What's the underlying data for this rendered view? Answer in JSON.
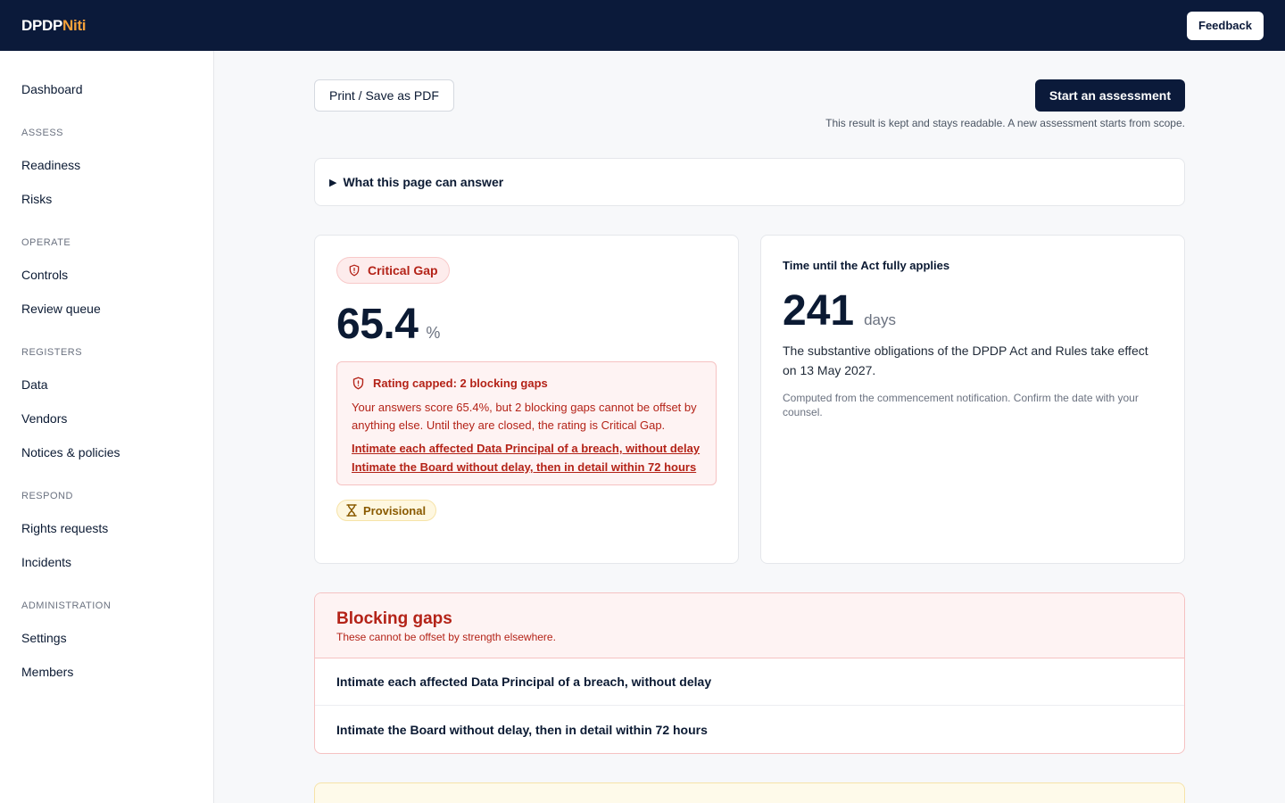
{
  "app": {
    "logo_primary": "DPDP",
    "logo_accent": "Niti",
    "feedback_label": "Feedback",
    "accent_color": "#f5a13a",
    "brand_color": "#0b1a3a"
  },
  "sidebar": {
    "top_item": "Dashboard",
    "groups": [
      {
        "label": "ASSESS",
        "items": [
          "Readiness",
          "Risks"
        ]
      },
      {
        "label": "OPERATE",
        "items": [
          "Controls",
          "Review queue"
        ]
      },
      {
        "label": "REGISTERS",
        "items": [
          "Data",
          "Vendors",
          "Notices & policies"
        ]
      },
      {
        "label": "RESPOND",
        "items": [
          "Rights requests",
          "Incidents"
        ]
      },
      {
        "label": "ADMINISTRATION",
        "items": [
          "Settings",
          "Members"
        ]
      }
    ]
  },
  "actions": {
    "print_label": "Print / Save as PDF",
    "start_label": "Start an assessment",
    "start_note": "This result is kept and stays readable. A new assessment starts from scope."
  },
  "faq": {
    "label": "What this page can answer",
    "icon": "triangle-right-icon"
  },
  "score_card": {
    "badge_label": "Critical Gap",
    "badge_icon": "shield-alert-icon",
    "score": "65.4",
    "unit": "%",
    "alert": {
      "title": "Rating capped: 2 blocking gaps",
      "body": "Your answers score 65.4%, but 2 blocking gaps cannot be offset by anything else. Until they are closed, the rating is Critical Gap.",
      "links": [
        "Intimate each affected Data Principal of a breach, without delay",
        "Intimate the Board without delay, then in detail within 72 hours"
      ],
      "color": "#b42318"
    },
    "provisional_label": "Provisional",
    "provisional_icon": "hourglass-icon"
  },
  "time_card": {
    "title": "Time until the Act fully applies",
    "days": "241",
    "unit": "days",
    "body": "The substantive obligations of the DPDP Act and Rules take effect on 13 May 2027.",
    "note": "Computed from the commencement notification. Confirm the date with your counsel."
  },
  "blocking_gaps": {
    "title": "Blocking gaps",
    "subtitle": "These cannot be offset by strength elsewhere.",
    "items": [
      "Intimate each affected Data Principal of a breach, without delay",
      "Intimate the Board without delay, then in detail within 72 hours"
    ]
  }
}
